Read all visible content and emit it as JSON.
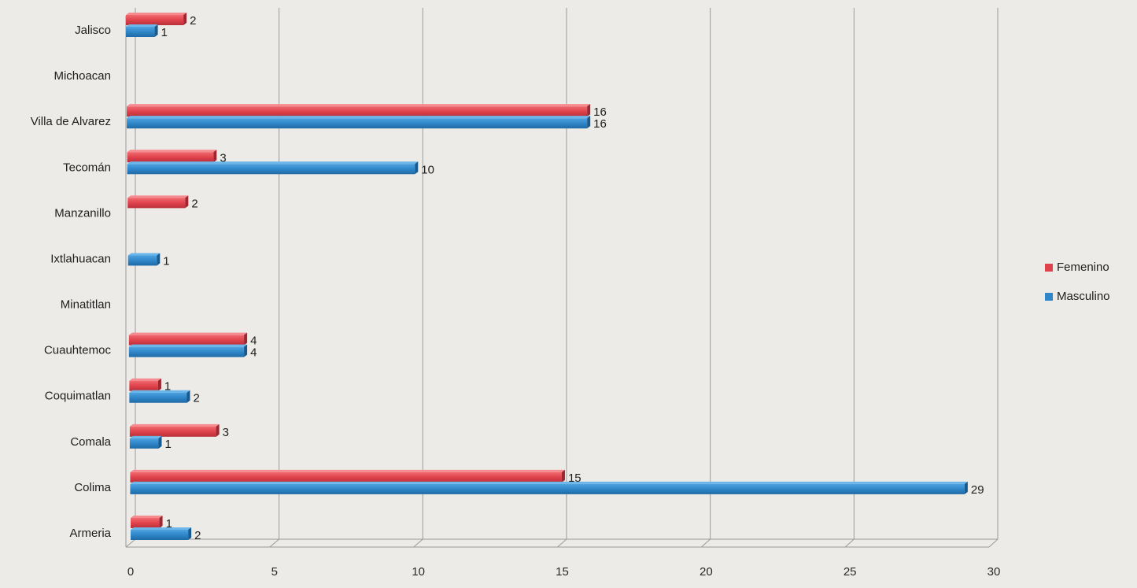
{
  "chart_data": {
    "type": "bar",
    "orientation": "horizontal",
    "style": "3d-clustered",
    "categories": [
      "Jalisco",
      "Michoacan",
      "Villa de Alvarez",
      "Tecomán",
      "Manzanillo",
      "Ixtlahuacan",
      "Minatitlan",
      "Cuauhtemoc",
      "Coquimatlan",
      "Comala",
      "Colima",
      "Armeria"
    ],
    "series": [
      {
        "name": "Femenino",
        "color": "#e0424b",
        "values": [
          2,
          null,
          16,
          3,
          2,
          null,
          null,
          4,
          1,
          3,
          15,
          1
        ]
      },
      {
        "name": "Masculino",
        "color": "#2f86c8",
        "values": [
          1,
          null,
          16,
          10,
          null,
          1,
          null,
          4,
          2,
          1,
          29,
          2
        ]
      }
    ],
    "xticks": [
      "0",
      "5",
      "10",
      "15",
      "20",
      "25",
      "30"
    ],
    "xlim": [
      0,
      30
    ],
    "grid": true,
    "legend": "right",
    "title": "",
    "xlabel": "",
    "ylabel": ""
  }
}
